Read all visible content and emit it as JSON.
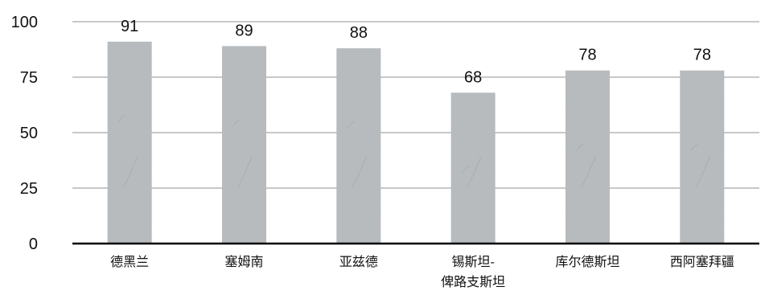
{
  "chart_data": {
    "type": "bar",
    "title": "",
    "xlabel": "",
    "ylabel": "",
    "categories": [
      "德黑兰",
      "塞姆南",
      "亚兹德",
      "锡斯坦-俾路支斯坦",
      "库尔德斯坦",
      "西阿塞拜疆"
    ],
    "category_lines": [
      [
        "德黑兰"
      ],
      [
        "塞姆南"
      ],
      [
        "亚兹德"
      ],
      [
        "锡斯坦-",
        "俾路支斯坦"
      ],
      [
        "库尔德斯坦"
      ],
      [
        "西阿塞拜疆"
      ]
    ],
    "values": [
      91,
      89,
      88,
      68,
      78,
      78
    ],
    "data_labels": [
      "91",
      "89",
      "88",
      "68",
      "78",
      "78"
    ],
    "ylim": [
      0,
      100
    ],
    "yticks": [
      0,
      25,
      50,
      75,
      100
    ],
    "ytick_labels": [
      "0",
      "25",
      "50",
      "75",
      "100"
    ],
    "grid": true,
    "legend": "none",
    "colors": {
      "bar": "#b7bcbf",
      "bar_texture": "#c9cdcf",
      "grid": "#c8c8c8",
      "axis": "#000000",
      "text": "#111111"
    }
  }
}
